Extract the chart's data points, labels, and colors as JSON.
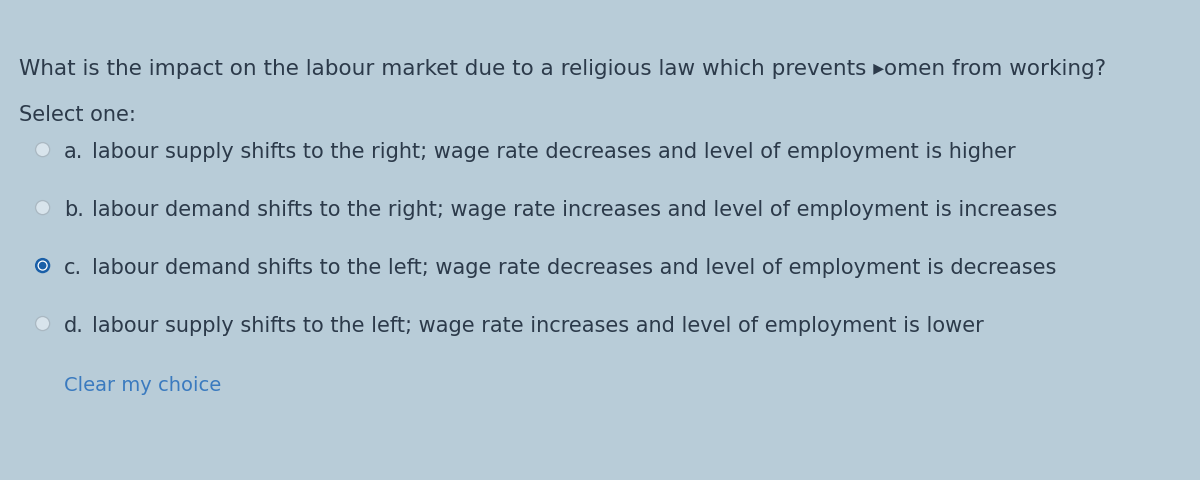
{
  "background_color": "#b8ccd8",
  "question_part1": "What is the impact on the labour market due to a religious law which prevents ",
  "question_cursor": "▸omen from working?",
  "select_one": "Select one:",
  "options": [
    {
      "label": "a.",
      "text": "labour supply shifts to the right; wage rate decreases and level of employment is higher",
      "selected": false
    },
    {
      "label": "b.",
      "text": "labour demand shifts to the right; wage rate increases and level of employment is increases",
      "selected": false
    },
    {
      "label": "c.",
      "text": "labour demand shifts to the left; wage rate decreases and level of employment is decreases",
      "selected": true
    },
    {
      "label": "d.",
      "text": "labour supply shifts to the left; wage rate increases and level of employment is lower",
      "selected": false
    }
  ],
  "clear_text": "Clear my choice",
  "clear_color": "#3a7abf",
  "text_color": "#2c3a4a",
  "font_size_question": 15.5,
  "font_size_options": 15,
  "font_size_select": 15,
  "font_size_clear": 14,
  "radio_unselected_edge": "#aab8c2",
  "radio_unselected_face": "#d8e4ec",
  "radio_selected_edge": "#1a5fa8",
  "radio_selected_face": "#1a5fa8",
  "radio_dot_color": "#ffffff"
}
